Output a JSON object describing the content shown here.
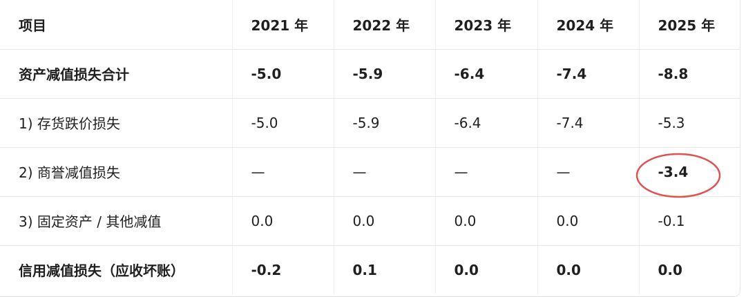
{
  "table": {
    "header": [
      "项目",
      "2021 年",
      "2022 年",
      "2023 年",
      "2024 年",
      "2025 年"
    ],
    "rows": [
      [
        "资产减值损失合计",
        "-5.0",
        "-5.9",
        "-6.4",
        "-7.4",
        "-8.8"
      ],
      [
        "1) 存货跌价损失",
        "-5.0",
        "-5.9",
        "-6.4",
        "-7.4",
        "-5.3"
      ],
      [
        "2) 商誉减值损失",
        "—",
        "—",
        "—",
        "—",
        "-3.4"
      ],
      [
        "3) 固定资产 / 其他减值",
        "0.0",
        "0.0",
        "0.0",
        "0.0",
        "-0.1"
      ],
      [
        "信用减值损失（应收坏账）",
        "-0.2",
        "0.1",
        "0.0",
        "0.0",
        "0.0"
      ]
    ]
  }
}
